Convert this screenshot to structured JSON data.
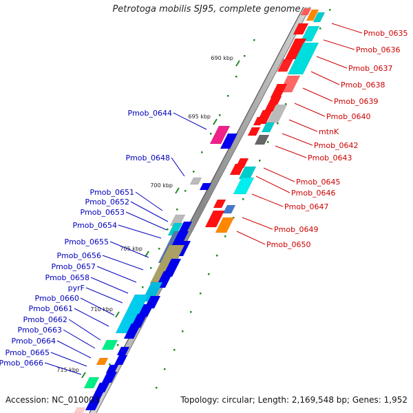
{
  "title": "Petrotoga mobilis SJ95, complete genome",
  "accession": "Accession: NC_010003",
  "topology": "Topology: circular; Length: 2,169,548 bp; Genes: 1,952",
  "colors": {
    "forward_label": "#cc0000",
    "reverse_label": "#0000bb",
    "tick": "#228822",
    "backbone": "#999999"
  },
  "ticks": [
    "690 kbp",
    "695 kbp",
    "700 kbp",
    "705 kbp",
    "710 kbp",
    "715 kbp"
  ],
  "forward_genes": [
    "Pmob_0635",
    "Pmob_0636",
    "Pmob_0637",
    "Pmob_0638",
    "Pmob_0639",
    "Pmob_0640",
    "mtnK",
    "Pmob_0642",
    "Pmob_0643",
    "Pmob_0645",
    "Pmob_0646",
    "Pmob_0647",
    "Pmob_0649",
    "Pmob_0650"
  ],
  "reverse_genes": [
    "Pmob_0644",
    "Pmob_0648",
    "Pmob_0651",
    "Pmob_0652",
    "Pmob_0653",
    "Pmob_0654",
    "Pmob_0655",
    "Pmob_0656",
    "Pmob_0657",
    "Pmob_0658",
    "pyrF",
    "Pmob_0660",
    "Pmob_0661",
    "Pmob_0662",
    "Pmob_0663",
    "Pmob_0664",
    "Pmob_0665",
    "Pmob_0666"
  ]
}
